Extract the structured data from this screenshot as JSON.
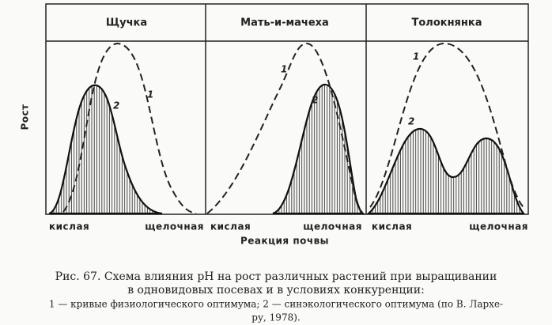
{
  "panels": [
    {
      "title": "Щучка",
      "curve_labels": [
        "1",
        "2"
      ],
      "x_labels": [
        "кислая",
        "щелочная"
      ]
    },
    {
      "title": "Мать-и-мачеха",
      "curve_labels": [
        "1",
        "2"
      ],
      "x_labels": [
        "кислая",
        "щелочная"
      ]
    },
    {
      "title": "Толокнянка",
      "curve_labels": [
        "1",
        "2"
      ],
      "x_labels": [
        "кислая",
        "щелочная"
      ]
    }
  ],
  "y_label": "Рост",
  "x_label": "Реакция почвы",
  "caption": {
    "lines": [
      "Рис. 67. Схема влияния pH на рост различных растений при выращивании",
      "в одновидовых посевах и в условиях конкуренции:",
      "1 — кривые физиологического оптимума; 2 — синэкологического оптимума (по В. Лархе-",
      "ру, 1978)."
    ]
  }
}
